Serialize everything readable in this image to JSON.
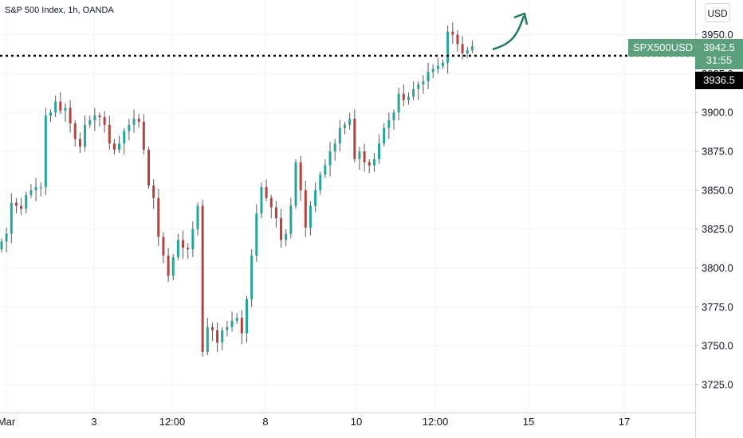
{
  "header": {
    "symbol_title": "S&P 500 Index, 1h, OANDA",
    "currency": "USD"
  },
  "price_scale": {
    "symbol_badge": "SPX500USD",
    "last_price": "3942.5",
    "countdown": "31:55",
    "marked_price": "3936.5"
  },
  "colors": {
    "up": "#26a69a",
    "down": "#b3433b",
    "wick": "#5a5a5a",
    "accent": "#5b9f7c",
    "arrow": "#1f7a5c"
  },
  "icons": {
    "projection": "curved-up-arrow-icon"
  },
  "chart_data": {
    "type": "candlestick",
    "title": "S&P 500 Index, 1h, OANDA",
    "xlabel": "",
    "ylabel": "",
    "ylim": [
      3715,
      3961
    ],
    "yticks": [
      3725,
      3750,
      3775,
      3800,
      3825,
      3850,
      3875,
      3900,
      3925,
      3950
    ],
    "ytick_labels": [
      "3725.0",
      "3750.0",
      "3775.0",
      "3800.0",
      "3825.0",
      "3850.0",
      "3875.0",
      "3900.0",
      "3925.0",
      "3950.0"
    ],
    "xtick_labels": [
      "Mar",
      "3",
      "12:00",
      "8",
      "10",
      "12:00",
      "15",
      "17"
    ],
    "grid": true,
    "horizontal_line": {
      "value": 3936.5,
      "style": "dotted"
    },
    "closes": [
      3817,
      3822,
      3842,
      3840,
      3838,
      3847,
      3850,
      3852,
      3852,
      3898,
      3900,
      3907,
      3901,
      3903,
      3893,
      3883,
      3878,
      3892,
      3895,
      3898,
      3897,
      3892,
      3880,
      3876,
      3880,
      3888,
      3892,
      3896,
      3894,
      3876,
      3853,
      3845,
      3820,
      3808,
      3795,
      3807,
      3818,
      3813,
      3812,
      3825,
      3840,
      3746,
      3762,
      3760,
      3752,
      3760,
      3762,
      3766,
      3768,
      3758,
      3780,
      3808,
      3835,
      3852,
      3845,
      3839,
      3832,
      3818,
      3822,
      3840,
      3868,
      3850,
      3826,
      3840,
      3850,
      3860,
      3866,
      3875,
      3880,
      3890,
      3892,
      3896,
      3870,
      3875,
      3868,
      3866,
      3870,
      3880,
      3890,
      3895,
      3900,
      3912,
      3908,
      3910,
      3915,
      3918,
      3920,
      3926,
      3928,
      3930,
      3932,
      3952,
      3950,
      3944,
      3938,
      3940,
      3942.5
    ]
  }
}
